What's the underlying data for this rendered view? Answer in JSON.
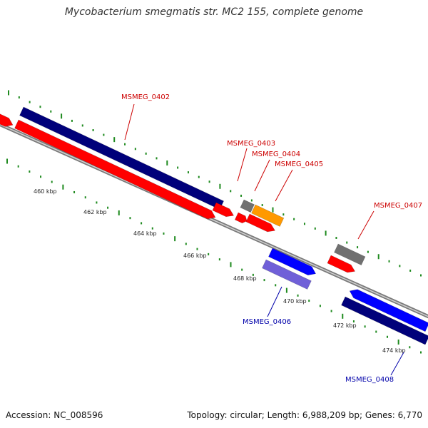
{
  "title": "Mycobacterium smegmatis str. MC2 155, complete genome",
  "footer": {
    "accession": "Accession: NC_008596",
    "summary": "Topology: circular; Length: 6,988,209 bp; Genes: 6,770"
  },
  "colors": {
    "backbone": "#8c8c8c",
    "forward_cds": "#ff0000",
    "reverse_cds": "#0000ff",
    "dark_cds": "#00007a",
    "pale_cds": "#7060d8",
    "orange_cds": "#ff9900",
    "other": "#707070",
    "tick": "#1e8a1e",
    "forward_label": "#cc0000",
    "reverse_label": "#0000aa"
  },
  "ticks": [
    "460 kbp",
    "462 kbp",
    "464 kbp",
    "466 kbp",
    "468 kbp",
    "470 kbp",
    "472 kbp",
    "474 kbp"
  ],
  "genes": [
    {
      "name": "MSMEG_0402",
      "strand": "forward"
    },
    {
      "name": "MSMEG_0403",
      "strand": "forward"
    },
    {
      "name": "MSMEG_0404",
      "strand": "forward"
    },
    {
      "name": "MSMEG_0405",
      "strand": "forward"
    },
    {
      "name": "MSMEG_0407",
      "strand": "forward"
    },
    {
      "name": "MSMEG_0406",
      "strand": "reverse"
    },
    {
      "name": "MSMEG_0408",
      "strand": "reverse"
    }
  ]
}
